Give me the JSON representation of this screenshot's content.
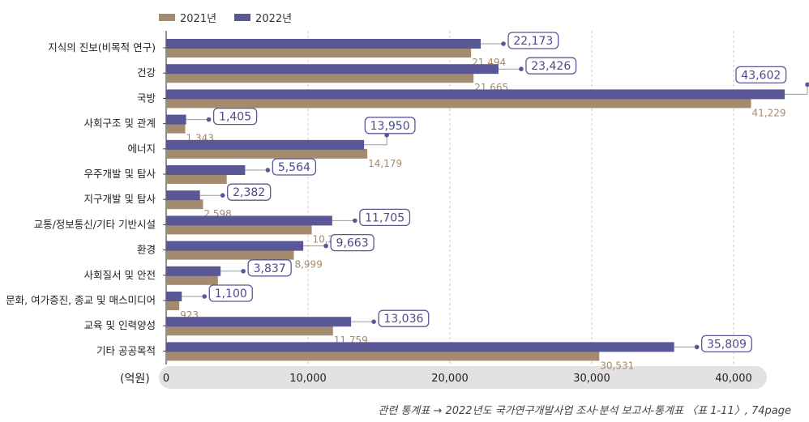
{
  "legend": {
    "series_2021": "2021년",
    "series_2022": "2022년"
  },
  "axis": {
    "unit": "(억원)"
  },
  "source": "관련 통계표 → 2022년도 국가연구개발사업 조사·분석 보고서-통계표 〈표 1-11〉, 74page",
  "colors": {
    "y2021": "#a48a6e",
    "y2022": "#5a5797",
    "label_2021": "#a48a6e",
    "label_2022": "#4c4a8a"
  },
  "chart_data": {
    "type": "bar",
    "orientation": "horizontal",
    "categories": [
      "지식의 진보(비목적 연구)",
      "건강",
      "국방",
      "사회구조 및 관계",
      "에너지",
      "우주개발 및 탐사",
      "지구개발 및 탐사",
      "교통/정보통신/기타 기반시설",
      "환경",
      "사회질서 및 안전",
      "문화, 여가증진, 종교 및 매스미디어",
      "교육 및 인력양성",
      "기타 공공목적"
    ],
    "series": [
      {
        "name": "2021년",
        "values": [
          21494,
          21665,
          41229,
          1343,
          14179,
          4267,
          2598,
          10259,
          8999,
          3647,
          923,
          11759,
          30531
        ]
      },
      {
        "name": "2022년",
        "values": [
          22173,
          23426,
          43602,
          1405,
          13950,
          5564,
          2382,
          11705,
          9663,
          3837,
          1100,
          13036,
          35809
        ]
      }
    ],
    "xlim": [
      0,
      42000
    ],
    "xticks": [
      0,
      10000,
      20000,
      30000,
      40000
    ],
    "xtick_labels": [
      "0",
      "10,000",
      "20,000",
      "30,000",
      "40,000"
    ],
    "xlabel": "(억원)",
    "grid": "vertical-dashed",
    "legend_position": "top-left"
  }
}
